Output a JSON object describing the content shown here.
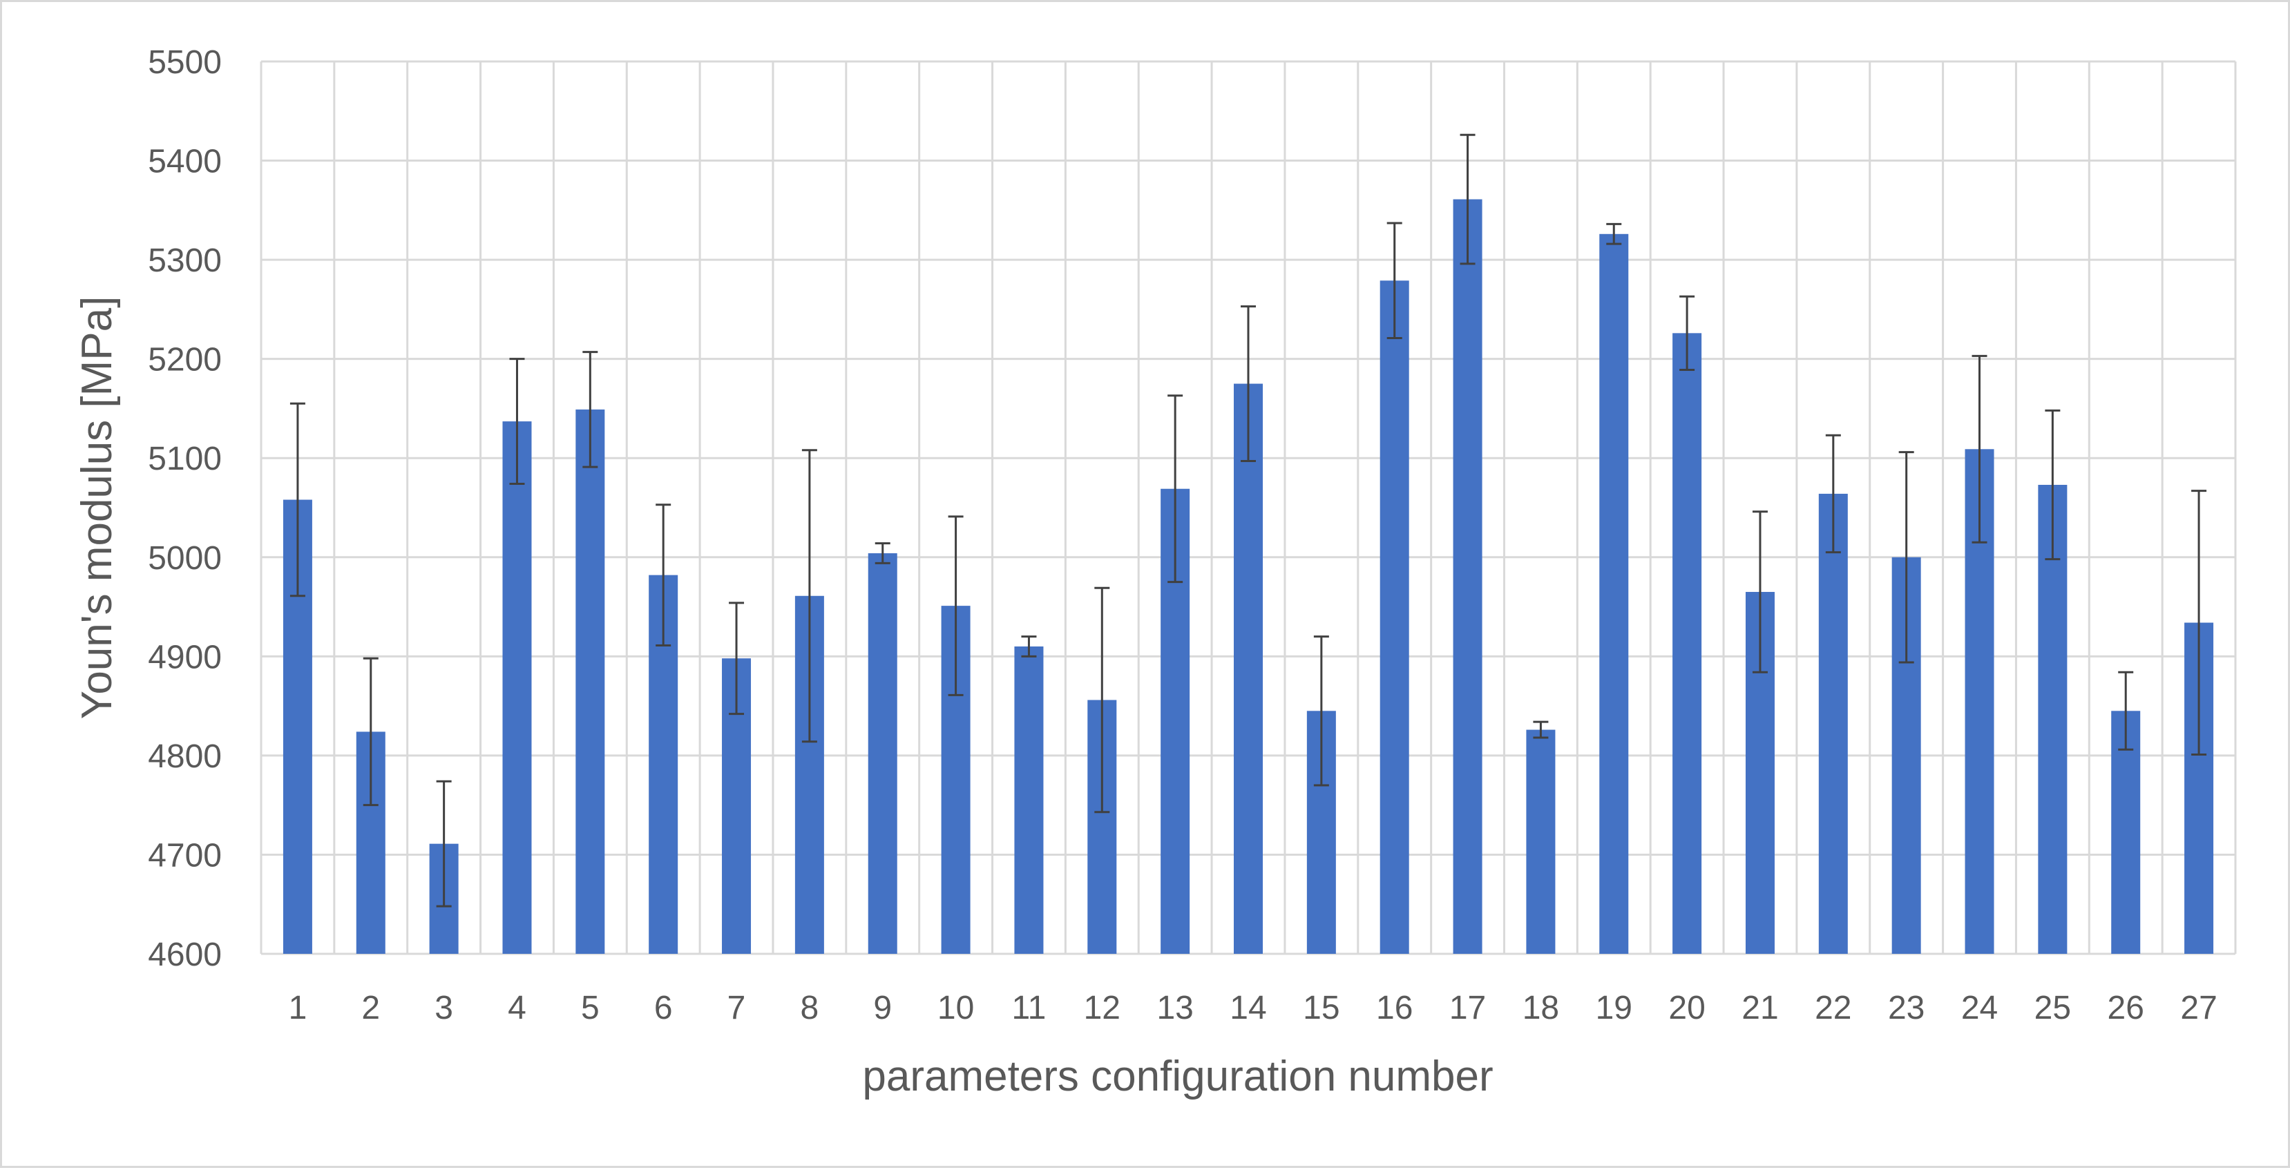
{
  "chart_data": {
    "type": "bar",
    "title": "",
    "xlabel": "parameters configuration number",
    "ylabel": "Youn's modulus [MPa]",
    "ylim": [
      4600,
      5500
    ],
    "yticks": [
      4600,
      4700,
      4800,
      4900,
      5000,
      5100,
      5200,
      5300,
      5400,
      5500
    ],
    "grid": true,
    "legend": "none",
    "categories": [
      "1",
      "2",
      "3",
      "4",
      "5",
      "6",
      "7",
      "8",
      "9",
      "10",
      "11",
      "12",
      "13",
      "14",
      "15",
      "16",
      "17",
      "18",
      "19",
      "20",
      "21",
      "22",
      "23",
      "24",
      "25",
      "26",
      "27"
    ],
    "values": [
      5058,
      4824,
      4711,
      5137,
      5149,
      4982,
      4898,
      4961,
      5004,
      4951,
      4910,
      4856,
      5069,
      5175,
      4845,
      5279,
      5361,
      4826,
      5326,
      5226,
      4965,
      5064,
      5000,
      5109,
      5073,
      4845,
      4934
    ],
    "error": [
      97,
      74,
      63,
      63,
      58,
      71,
      56,
      147,
      10,
      90,
      10,
      113,
      94,
      78,
      75,
      58,
      65,
      8,
      10,
      37,
      81,
      59,
      106,
      94,
      75,
      39,
      133
    ],
    "colors": {
      "bar": "#4472c4",
      "error_bar": "#404040",
      "grid": "#d9d9d9",
      "text": "#595959"
    }
  }
}
